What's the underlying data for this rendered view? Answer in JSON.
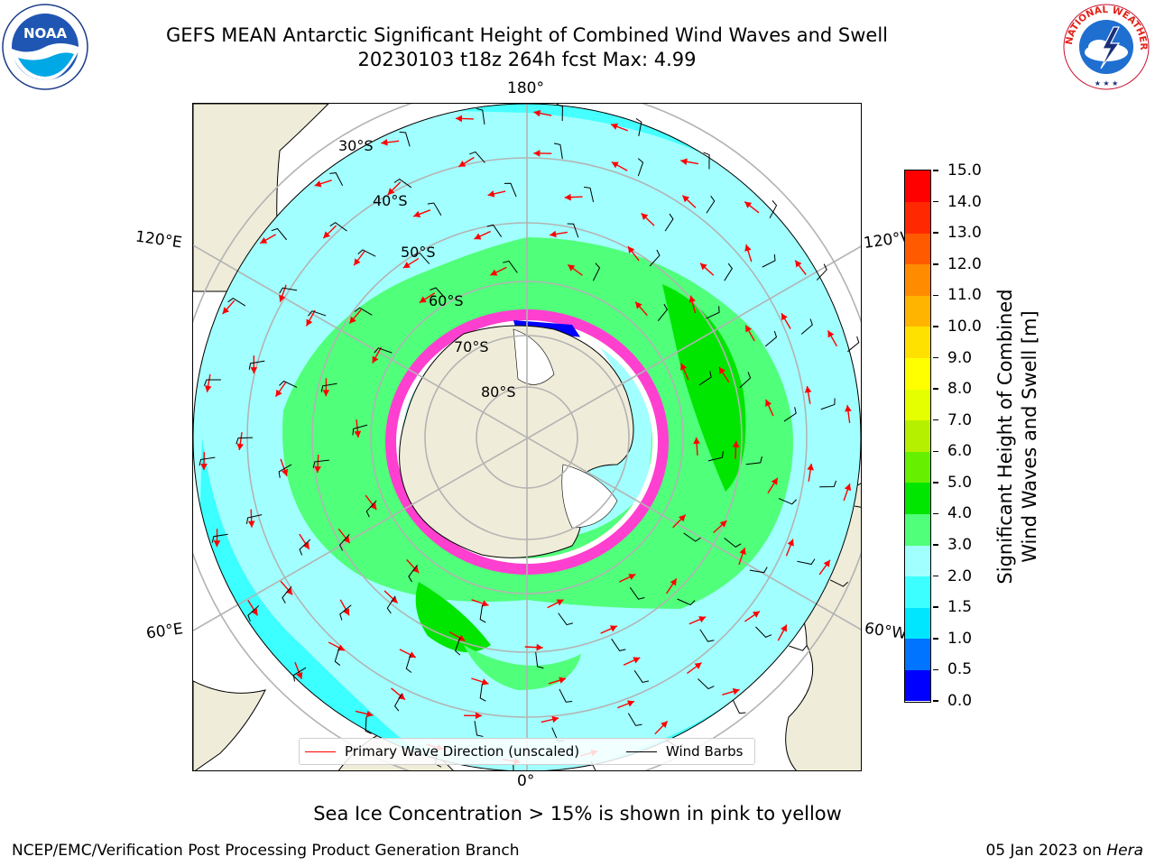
{
  "title": {
    "line1": "GEFS MEAN Antarctic Significant Height of Combined Wind Waves and Swell",
    "line2": "20230103 t18z 264h fcst   Max: 4.99"
  },
  "map": {
    "projection": "south-polar-stereographic",
    "lon_labels": {
      "top": "180°",
      "bottom": "0°",
      "upper_left": "120°E",
      "upper_right": "120°W",
      "lower_left": "60°E",
      "lower_right": "60°W"
    },
    "lat_labels": [
      "30°S",
      "40°S",
      "50°S",
      "60°S",
      "70°S",
      "80°S"
    ],
    "land_color": "#efecd9",
    "ice_colors": [
      "#ff3fd0",
      "#ff80ff",
      "#ffffff",
      "#fff0a0"
    ]
  },
  "legend": {
    "wave_direction": "Primary Wave Direction (unscaled)",
    "wind_barbs": "Wind Barbs",
    "wave_color": "#ff0000",
    "barb_color": "#000000"
  },
  "colorbar": {
    "label_line1": "Significant Height of Combined",
    "label_line2": "Wind Waves and Swell [m]",
    "ticks": [
      "0.0",
      "0.5",
      "1.0",
      "1.5",
      "2.0",
      "3.0",
      "4.0",
      "5.0",
      "6.0",
      "7.0",
      "8.0",
      "9.0",
      "10.0",
      "11.0",
      "12.0",
      "13.0",
      "14.0",
      "15.0"
    ],
    "colors": [
      "#0000ff",
      "#0073ff",
      "#00e6ff",
      "#3cffff",
      "#a2ffff",
      "#50ff7a",
      "#00e600",
      "#66f000",
      "#b4f000",
      "#e6ff00",
      "#ffff00",
      "#ffe100",
      "#ffb400",
      "#ff8c00",
      "#ff5a00",
      "#ff2800",
      "#ff0000"
    ]
  },
  "caption": "Sea Ice Concentration > 15% is shown in pink to yellow",
  "footer": {
    "left": "NCEP/EMC/Verification Post Processing Product Generation Branch",
    "right_date": "05 Jan 2023 on",
    "right_host": "Hera"
  },
  "logos": {
    "left": "NOAA",
    "right": "NATIONAL WEATHER SERVICE"
  }
}
